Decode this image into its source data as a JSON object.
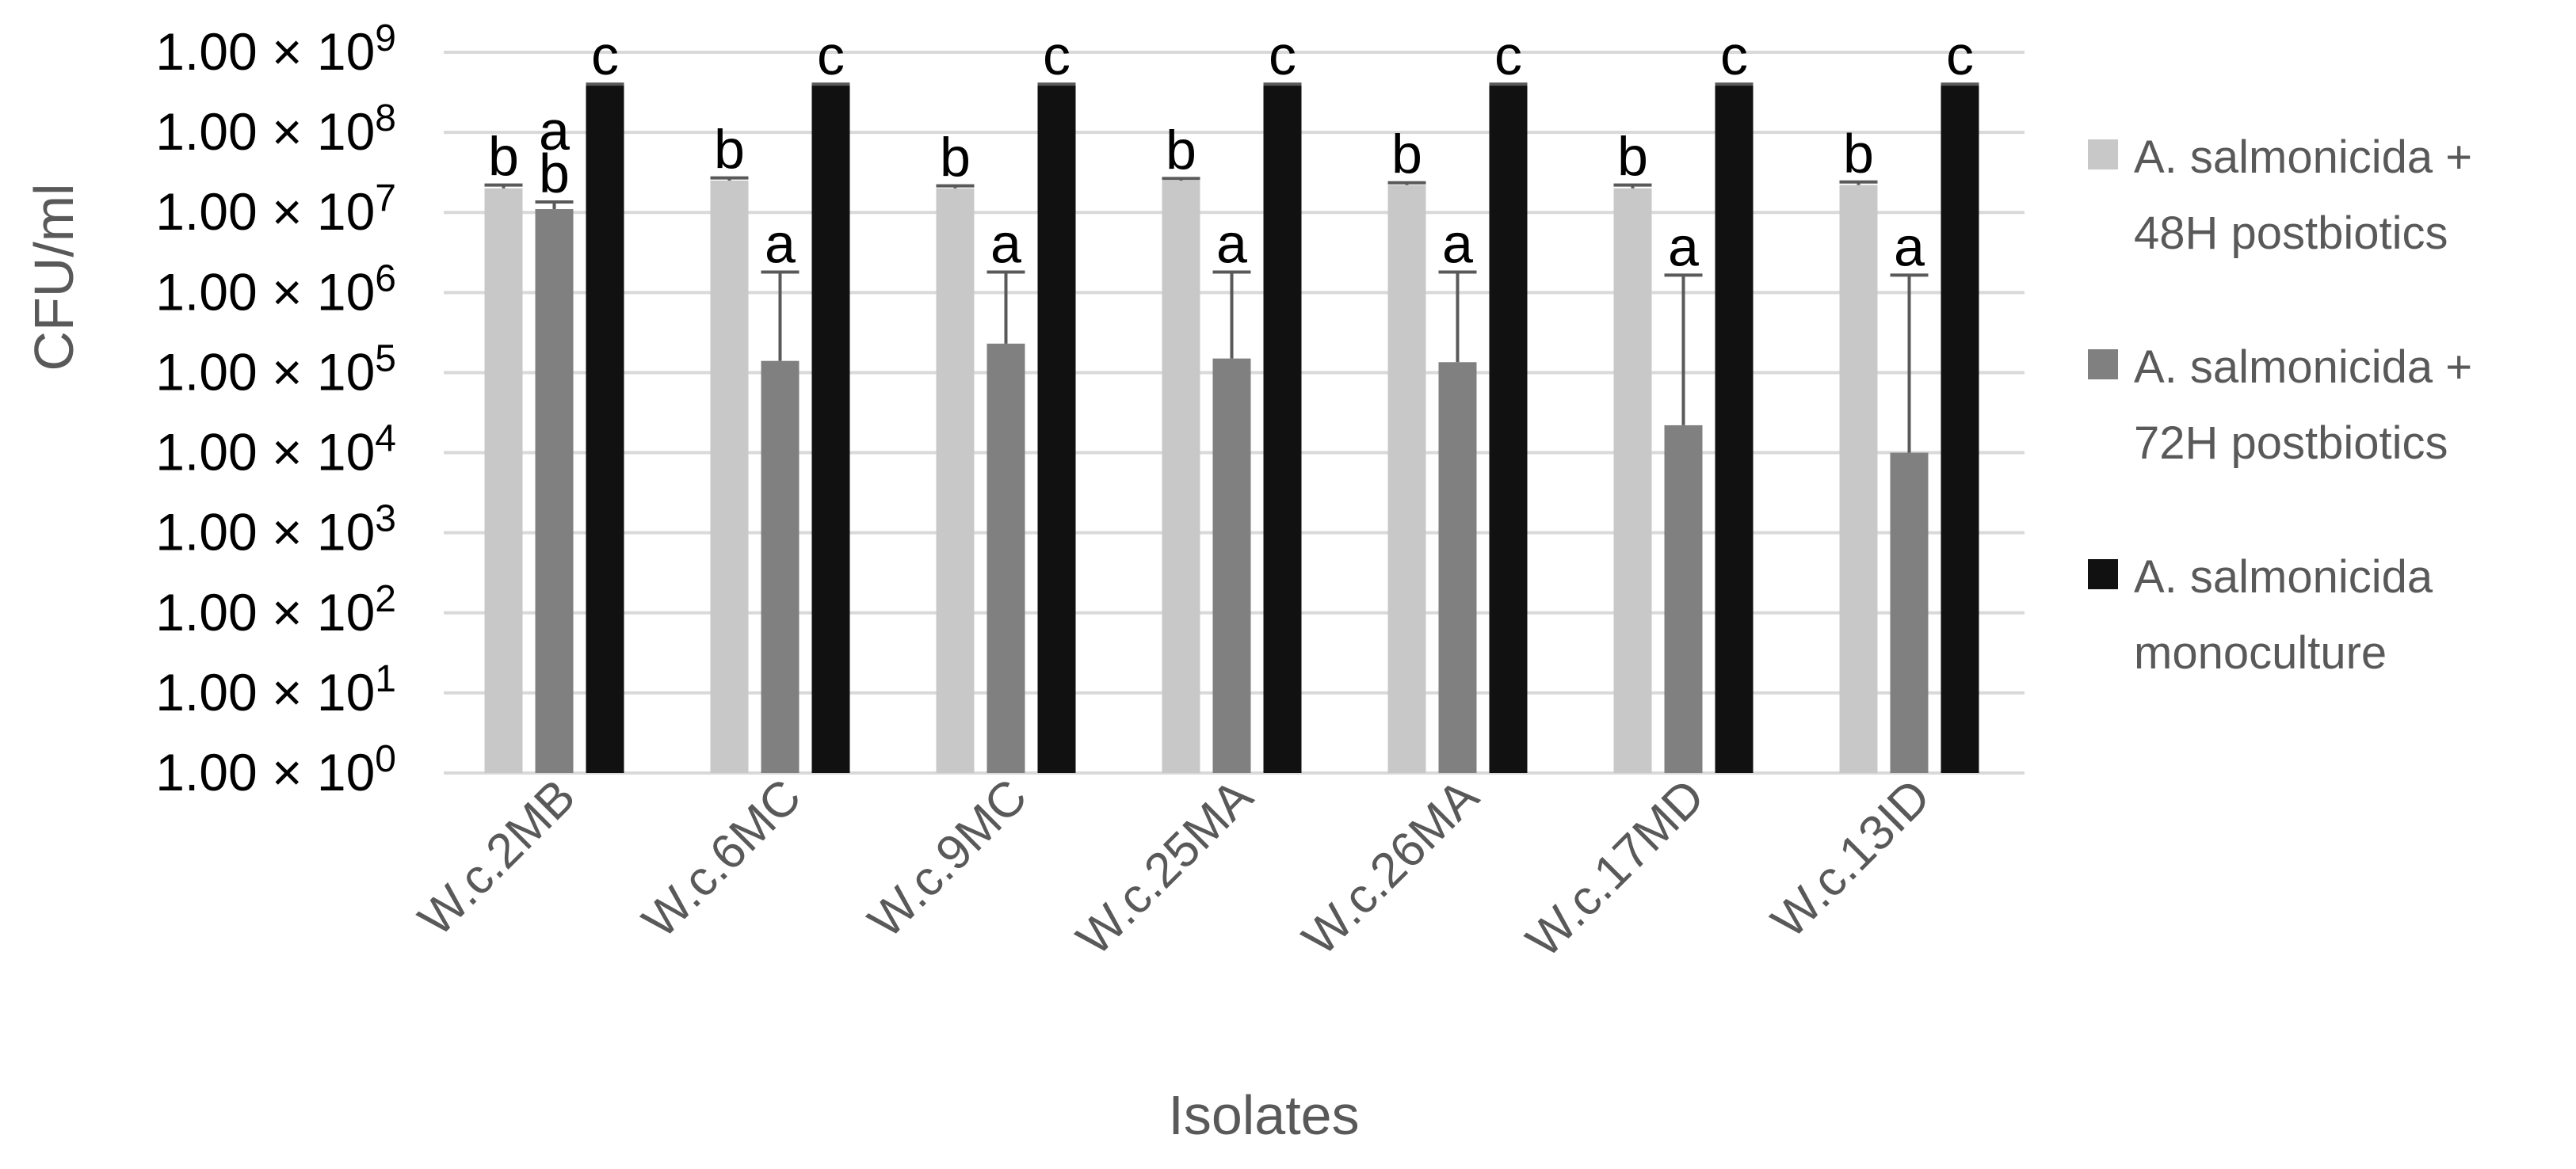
{
  "chart_data": {
    "type": "bar",
    "title": "",
    "xlabel": "Isolates",
    "ylabel": "CFU/ml",
    "yscale": "log",
    "ylim": [
      1,
      1000000000
    ],
    "grid": true,
    "legend_position": "right",
    "y_ticks": [
      {
        "value": 1,
        "mantissa": "1.00",
        "times": "×",
        "base": "10",
        "exp": "0"
      },
      {
        "value": 10,
        "mantissa": "1.00",
        "times": "×",
        "base": "10",
        "exp": "1"
      },
      {
        "value": 100,
        "mantissa": "1.00",
        "times": "×",
        "base": "10",
        "exp": "2"
      },
      {
        "value": 1000,
        "mantissa": "1.00",
        "times": "×",
        "base": "10",
        "exp": "3"
      },
      {
        "value": 10000,
        "mantissa": "1.00",
        "times": "×",
        "base": "10",
        "exp": "4"
      },
      {
        "value": 100000,
        "mantissa": "1.00",
        "times": "×",
        "base": "10",
        "exp": "5"
      },
      {
        "value": 1000000,
        "mantissa": "1.00",
        "times": "×",
        "base": "10",
        "exp": "6"
      },
      {
        "value": 10000000,
        "mantissa": "1.00",
        "times": "×",
        "base": "10",
        "exp": "7"
      },
      {
        "value": 100000000,
        "mantissa": "1.00",
        "times": "×",
        "base": "10",
        "exp": "8"
      },
      {
        "value": 1000000000,
        "mantissa": "1.00",
        "times": "×",
        "base": "10",
        "exp": "9"
      }
    ],
    "categories": [
      "W.c.2MB",
      "W.c.6MC",
      "W.c.9MC",
      "W.c.25MA",
      "W.c.26MA",
      "W.c.17MD",
      "W.c.13ID"
    ],
    "series": [
      {
        "name": "A. salmonicida + 48H postbiotics",
        "color": "#c8c8c8",
        "values": [
          20000000,
          25000000,
          20000000,
          25000000,
          22000000,
          20000000,
          22000000
        ],
        "error_upper": [
          22000000,
          27000000,
          21500000,
          26500000,
          23500000,
          22000000,
          24000000
        ],
        "letters": [
          "b",
          "b",
          "b",
          "b",
          "b",
          "b",
          "b"
        ]
      },
      {
        "name": "A. salmonicida + 72H postbiotics",
        "color": "#808080",
        "values": [
          11000000,
          140000,
          230000,
          150000,
          135000,
          22000,
          10000
        ],
        "error_upper": [
          13500000,
          1800000,
          1800000,
          1800000,
          1800000,
          1650000,
          1650000
        ],
        "letters": [
          "a b",
          "a",
          "a",
          "a",
          "a",
          "a",
          "a"
        ]
      },
      {
        "name": "A. salmonicida monoculture",
        "color": "#111111",
        "values": [
          400000000,
          400000000,
          400000000,
          400000000,
          400000000,
          400000000,
          400000000
        ],
        "error_upper": [
          400000000,
          400000000,
          400000000,
          400000000,
          400000000,
          400000000,
          400000000
        ],
        "letters": [
          "c",
          "c",
          "c",
          "c",
          "c",
          "c",
          "c"
        ]
      }
    ]
  },
  "legend": {
    "items": [
      {
        "line1": "A. salmonicida +",
        "line2": "48H postbiotics",
        "color": "#c8c8c8"
      },
      {
        "line1": "A. salmonicida +",
        "line2": "72H postbiotics",
        "color": "#808080"
      },
      {
        "line1": "A. salmonicida",
        "line2": "monoculture",
        "color": "#111111"
      }
    ]
  },
  "axes": {
    "y_title": "CFU/ml",
    "x_title": "Isolates"
  }
}
